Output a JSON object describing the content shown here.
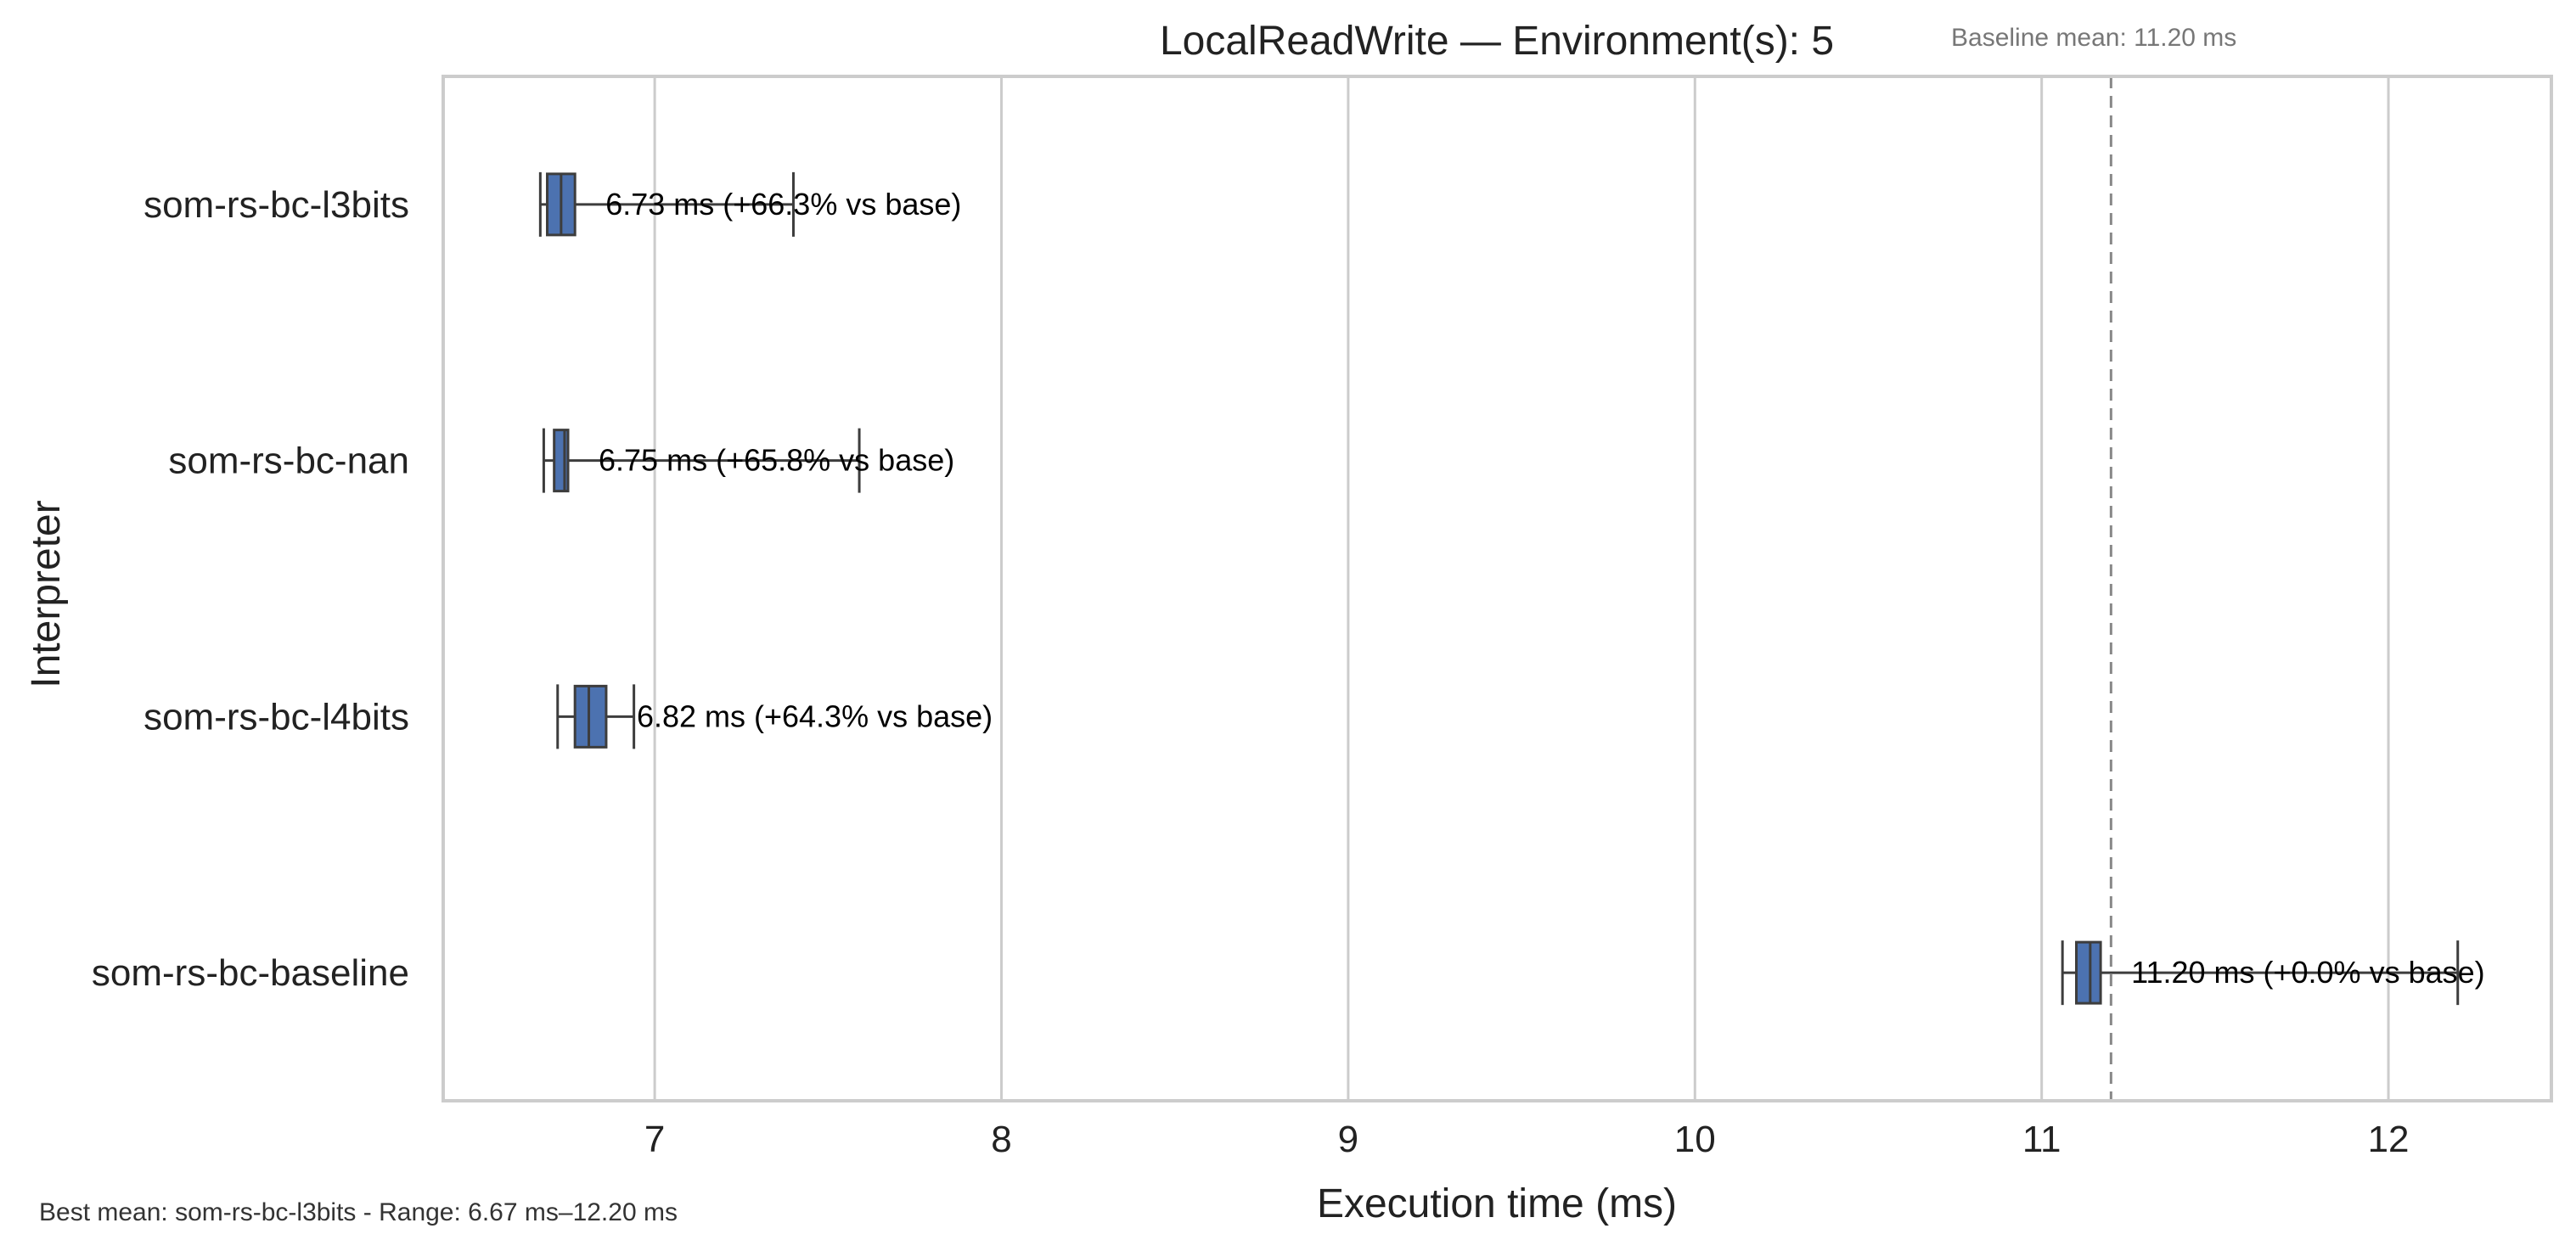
{
  "chart_data": {
    "type": "box",
    "orientation": "horizontal",
    "title": "LocalReadWrite — Environment(s): 5",
    "xlabel": "Execution time (ms)",
    "ylabel": "Interpreter",
    "xlim": [
      6.39,
      12.47
    ],
    "xticks": [
      7,
      8,
      9,
      10,
      11,
      12
    ],
    "grid": "vertical",
    "box_color": "#4c72b0",
    "baseline": {
      "value": 11.2,
      "label": "Baseline mean: 11.20 ms",
      "color": "#888888",
      "style": "dashed"
    },
    "footer_note": "Best mean: som-rs-bc-l3bits - Range: 6.67 ms–12.20 ms",
    "series": [
      {
        "name": "som-rs-bc-l3bits",
        "whisker_low": 6.67,
        "q1": 6.69,
        "median": 6.73,
        "q3": 6.77,
        "whisker_high": 7.4,
        "annotation": "6.73 ms  (+66.3% vs base)"
      },
      {
        "name": "som-rs-bc-nan",
        "whisker_low": 6.68,
        "q1": 6.71,
        "median": 6.74,
        "q3": 6.75,
        "whisker_high": 7.59,
        "annotation": "6.75 ms  (+65.8% vs base)"
      },
      {
        "name": "som-rs-bc-l4bits",
        "whisker_low": 6.72,
        "q1": 6.77,
        "median": 6.81,
        "q3": 6.86,
        "whisker_high": 6.94,
        "annotation": "6.82 ms  (+64.3% vs base)"
      },
      {
        "name": "som-rs-bc-baseline",
        "whisker_low": 11.06,
        "q1": 11.1,
        "median": 11.14,
        "q3": 11.17,
        "whisker_high": 12.2,
        "annotation": "11.20 ms  (+0.0% vs base)"
      }
    ]
  }
}
